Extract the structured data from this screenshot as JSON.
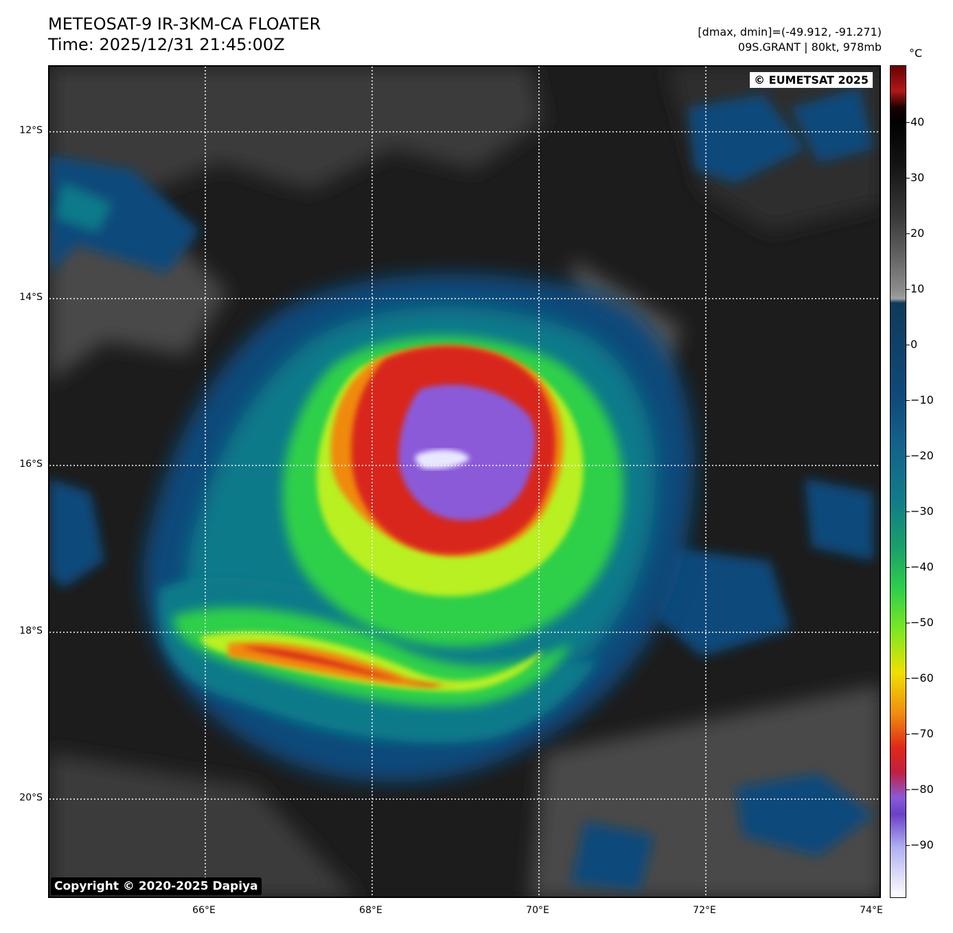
{
  "header": {
    "title_line1": "METEOSAT-9 IR-3KM-CA FLOATER",
    "title_line2": "Time: 2025/12/31 21:45:00Z",
    "info_line1": "[dmax, dmin]=(-49.912, -91.271)",
    "info_line2": "09S.GRANT | 80kt, 978mb"
  },
  "map": {
    "credit_top": "© EUMETSAT 2025",
    "credit_bottom": "Copyright © 2020-2025 Dapiya",
    "lat_labels": [
      "12°S",
      "14°S",
      "16°S",
      "18°S",
      "20°S"
    ],
    "lon_labels": [
      "66°E",
      "68°E",
      "70°E",
      "72°E",
      "74°E"
    ],
    "colors": {
      "background_cloud_free": "#1c1c1c",
      "warm_cloud": "#5a5a5a",
      "cold_blue": "#0f4a7a",
      "teal": "#117a8a",
      "green": "#2fd04a",
      "yellow_green": "#b8f020",
      "orange": "#f08a10",
      "red": "#d8281c",
      "purple": "#8a5ad8",
      "white_core": "#e8e8ff"
    }
  },
  "colorbar": {
    "unit": "°C",
    "ticks": [
      "40",
      "30",
      "20",
      "10",
      "0",
      "−10",
      "−20",
      "−30",
      "−40",
      "−50",
      "−60",
      "−70",
      "−80",
      "−90"
    ]
  }
}
